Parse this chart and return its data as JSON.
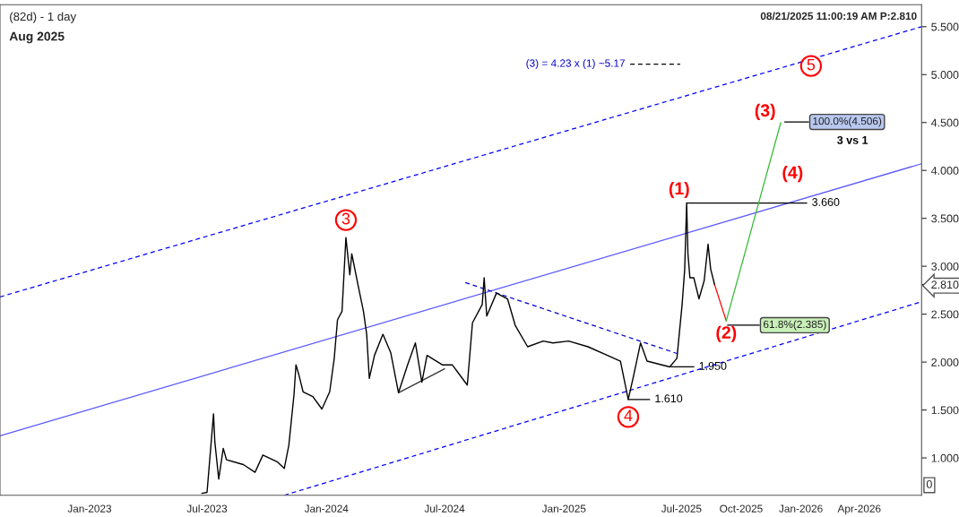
{
  "chart_data": {
    "type": "line",
    "title": "(82d) - 1 day",
    "subtitle": "Aug 2025",
    "xlim": [
      "2022-08-16",
      "2026-07-06"
    ],
    "ylim": [
      0.61,
      5.73
    ],
    "xticks": [
      {
        "value": "2023-01-01",
        "label": "Jan-2023"
      },
      {
        "value": "2023-07-01",
        "label": "Jul-2023"
      },
      {
        "value": "2024-01-01",
        "label": "Jan-2024"
      },
      {
        "value": "2024-07-01",
        "label": "Jul-2024"
      },
      {
        "value": "2025-01-01",
        "label": "Jan-2025"
      },
      {
        "value": "2025-07-01",
        "label": "Jul-2025"
      },
      {
        "value": "2025-10-01",
        "label": "Oct-2025"
      },
      {
        "value": "2026-01-01",
        "label": "Jan-2026"
      },
      {
        "value": "2026-04-01",
        "label": "Apr-2026"
      }
    ],
    "yticks": [
      {
        "value": 1.0,
        "label": "1.000"
      },
      {
        "value": 1.5,
        "label": "1.500"
      },
      {
        "value": 2.0,
        "label": "2.000"
      },
      {
        "value": 2.5,
        "label": "2.500"
      },
      {
        "value": 2.81,
        "label": "2.810"
      },
      {
        "value": 3.0,
        "label": "3.000"
      },
      {
        "value": 3.5,
        "label": "3.500"
      },
      {
        "value": 4.0,
        "label": "4.000"
      },
      {
        "value": 4.5,
        "label": "4.500"
      },
      {
        "value": 5.0,
        "label": "5.000"
      },
      {
        "value": 5.5,
        "label": "5.500"
      }
    ],
    "grid": false,
    "series": [
      {
        "color": "#0000ff",
        "line_style": "dashed",
        "x": [
          "2022-08-16",
          "2026-07-06"
        ],
        "values": [
          2.68,
          5.5
        ]
      },
      {
        "color": "#5555ff",
        "line_style": "solid",
        "x": [
          "2022-08-16",
          "2026-07-06"
        ],
        "values": [
          1.23,
          4.07
        ]
      },
      {
        "color": "#0000ff",
        "line_style": "dashed",
        "x": [
          "2023-10-28",
          "2026-07-06"
        ],
        "values": [
          0.61,
          2.63
        ]
      },
      {
        "color": "#0000cc",
        "line_style": "dashed",
        "x": [
          "2024-08-02",
          "2025-06-24"
        ],
        "values": [
          2.83,
          2.09
        ]
      },
      {
        "color": "#333333",
        "line_style": "solid",
        "x": [
          "2024-04-21",
          "2024-07-01"
        ],
        "values": [
          1.68,
          1.93
        ]
      },
      {
        "color": "#000000",
        "line_style": "solid",
        "x": [
          "2025-07-09",
          "2026-01-10"
        ],
        "values": [
          3.66,
          3.66
        ]
      },
      {
        "color": "#000000",
        "line_style": "solid",
        "x": [
          "2025-06-15",
          "2025-07-20"
        ],
        "values": [
          1.95,
          1.95
        ]
      },
      {
        "color": "#000000",
        "line_style": "solid",
        "x": [
          "2025-04-10",
          "2025-05-13"
        ],
        "values": [
          1.61,
          1.61
        ]
      },
      {
        "color": "#000000",
        "line_style": "solid",
        "x": [
          "2025-09-10",
          "2025-10-29"
        ],
        "values": [
          2.385,
          2.385
        ]
      },
      {
        "color": "#000000",
        "line_style": "solid",
        "x": [
          "2025-12-07",
          "2026-01-13"
        ],
        "values": [
          4.506,
          4.506
        ]
      },
      {
        "color": "#000000",
        "line_style": "dashed",
        "x": [
          "2025-04-13",
          "2025-06-29"
        ],
        "values": [
          5.11,
          5.11
        ]
      },
      {
        "color": "#ff0000",
        "line_style": "solid",
        "x": [
          "2025-08-21",
          "2025-09-08"
        ],
        "values": [
          2.81,
          2.43
        ]
      },
      {
        "color": "#33bb33",
        "line_style": "solid",
        "x": [
          "2025-09-08",
          "2025-12-01"
        ],
        "values": [
          2.43,
          4.5
        ]
      },
      {
        "color": "#000000",
        "line_style": "solid",
        "x": [
          "2023-06-23",
          "2023-07-01",
          "2023-07-11",
          "2023-07-13",
          "2023-07-19",
          "2023-07-26",
          "2023-07-31",
          "2023-08-26",
          "2023-09-13",
          "2023-09-25",
          "2023-10-17",
          "2023-10-28",
          "2023-11-04",
          "2023-11-12",
          "2023-11-15",
          "2023-11-19",
          "2023-11-26",
          "2023-12-11",
          "2023-12-25",
          "2024-01-06",
          "2024-01-13",
          "2024-01-18",
          "2024-01-25",
          "2024-01-31",
          "2024-02-06",
          "2024-02-09",
          "2024-02-20",
          "2024-02-27",
          "2024-03-03",
          "2024-03-07",
          "2024-03-15",
          "2024-03-28",
          "2024-04-09",
          "2024-04-21",
          "2024-05-05",
          "2024-05-17",
          "2024-05-27",
          "2024-06-04",
          "2024-06-28",
          "2024-07-13",
          "2024-08-05",
          "2024-08-13",
          "2024-08-28",
          "2024-08-31",
          "2024-09-04",
          "2024-09-19",
          "2024-10-06",
          "2024-10-18",
          "2024-11-06",
          "2024-11-30",
          "2024-12-15",
          "2025-01-08",
          "2025-02-07",
          "2025-03-09",
          "2025-03-29",
          "2025-04-10",
          "2025-04-18",
          "2025-04-29",
          "2025-05-09",
          "2025-06-13",
          "2025-06-24",
          "2025-07-02",
          "2025-07-06",
          "2025-07-09",
          "2025-07-11",
          "2025-07-14",
          "2025-07-20",
          "2025-07-28",
          "2025-08-05",
          "2025-08-11",
          "2025-08-15",
          "2025-08-21"
        ],
        "values": [
          0.63,
          0.64,
          1.46,
          1.17,
          0.78,
          1.1,
          0.98,
          0.93,
          0.85,
          1.03,
          0.96,
          0.89,
          1.13,
          1.66,
          1.97,
          1.88,
          1.69,
          1.64,
          1.51,
          1.69,
          2.04,
          2.44,
          2.53,
          3.3,
          2.91,
          3.13,
          2.76,
          2.53,
          2.29,
          1.83,
          2.07,
          2.29,
          2.1,
          1.68,
          1.97,
          2.2,
          1.79,
          2.07,
          1.97,
          1.97,
          1.76,
          2.41,
          2.6,
          2.88,
          2.48,
          2.72,
          2.66,
          2.38,
          2.16,
          2.22,
          2.2,
          2.22,
          2.16,
          2.07,
          2.01,
          1.61,
          1.85,
          2.2,
          2.01,
          1.95,
          2.04,
          2.6,
          2.97,
          3.66,
          3.13,
          2.88,
          2.88,
          2.66,
          2.85,
          3.23,
          2.97,
          2.81
        ]
      }
    ],
    "annotations": [
      "08/21/2025 11:00:19 AM P:2.810",
      "0",
      "5",
      "(4)",
      "3 vs 1",
      {
        "text": "3",
        "x": "2024-01-31",
        "y": 3.3
      },
      {
        "text": "4",
        "x": "2025-04-10",
        "y": 1.61
      },
      {
        "text": "(1)",
        "x": "2025-07-09",
        "y": 3.66
      },
      {
        "text": "(2)",
        "x": "2025-09-08",
        "y": 2.43
      },
      {
        "text": "(3)",
        "x": "2025-12-01",
        "y": 4.5
      },
      {
        "text": "100.0%(4.506)",
        "x": "2026-01-13",
        "y": 4.506
      },
      {
        "text": "61.8%(2.385)",
        "x": "2025-10-29",
        "y": 2.385
      },
      {
        "text": "3.660",
        "x": "2026-01-10",
        "y": 3.66
      },
      {
        "text": "1.950",
        "x": "2025-07-20",
        "y": 1.95
      },
      {
        "text": "1.610",
        "x": "2025-05-13",
        "y": 1.61
      },
      {
        "text": "(3) = 4.23 x (1) ~5.17",
        "x": "2025-04-13",
        "y": 5.11
      }
    ]
  }
}
